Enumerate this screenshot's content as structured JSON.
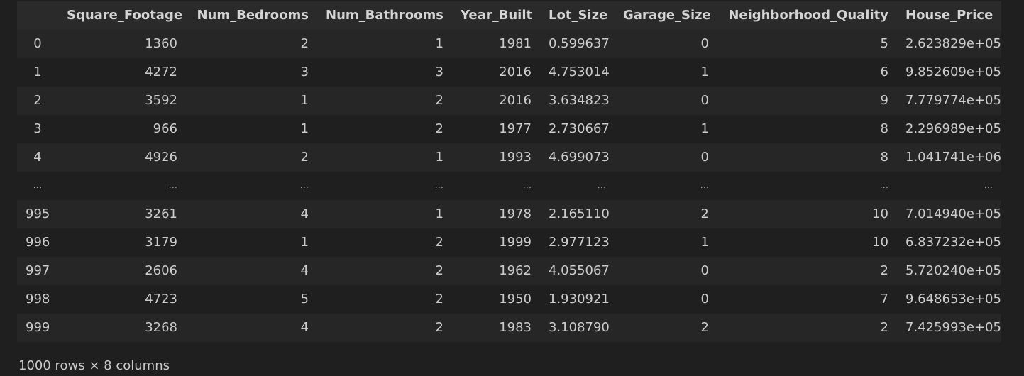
{
  "table": {
    "columns": [
      "",
      "Square_Footage",
      "Num_Bedrooms",
      "Num_Bathrooms",
      "Year_Built",
      "Lot_Size",
      "Garage_Size",
      "Neighborhood_Quality",
      "House_Price"
    ],
    "rows": [
      [
        "0",
        "1360",
        "2",
        "1",
        "1981",
        "0.599637",
        "0",
        "5",
        "2.623829e+05"
      ],
      [
        "1",
        "4272",
        "3",
        "3",
        "2016",
        "4.753014",
        "1",
        "6",
        "9.852609e+05"
      ],
      [
        "2",
        "3592",
        "1",
        "2",
        "2016",
        "3.634823",
        "0",
        "9",
        "7.779774e+05"
      ],
      [
        "3",
        "966",
        "1",
        "2",
        "1977",
        "2.730667",
        "1",
        "8",
        "2.296989e+05"
      ],
      [
        "4",
        "4926",
        "2",
        "1",
        "1993",
        "4.699073",
        "0",
        "8",
        "1.041741e+06"
      ],
      [
        "...",
        "...",
        "...",
        "...",
        "...",
        "...",
        "...",
        "...",
        "..."
      ],
      [
        "995",
        "3261",
        "4",
        "1",
        "1978",
        "2.165110",
        "2",
        "10",
        "7.014940e+05"
      ],
      [
        "996",
        "3179",
        "1",
        "2",
        "1999",
        "2.977123",
        "1",
        "10",
        "6.837232e+05"
      ],
      [
        "997",
        "2606",
        "4",
        "2",
        "1962",
        "4.055067",
        "0",
        "2",
        "5.720240e+05"
      ],
      [
        "998",
        "4723",
        "5",
        "2",
        "1950",
        "1.930921",
        "0",
        "7",
        "9.648653e+05"
      ],
      [
        "999",
        "3268",
        "4",
        "2",
        "1983",
        "3.108790",
        "2",
        "2",
        "7.425993e+05"
      ]
    ]
  },
  "summary": "1000 rows × 8 columns",
  "colors": {
    "background": "#1f1f1f",
    "row_stripe": "#262626",
    "header_bg": "#2a2a2a",
    "text": "#cccccc"
  }
}
